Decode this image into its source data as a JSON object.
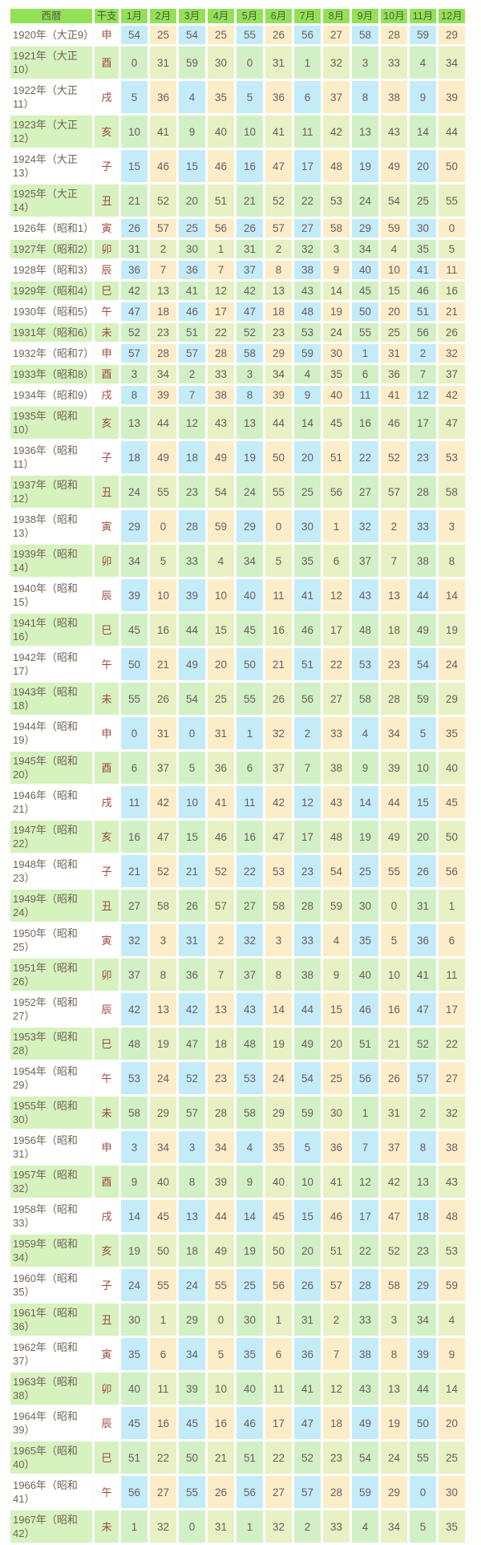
{
  "colors": {
    "header_bg": "#93e156",
    "header_text": "#4e5d42",
    "green_row_bg": "#d6f2bf",
    "white_row_bg": "#ffffff",
    "blue_cell": "#c4ecf8",
    "cream_cell": "#fcedc9",
    "green_cell_cool": "#d2f0c5",
    "green_cell_warm": "#e7f1c3",
    "year_text": "#6e6356",
    "eto_text": "#9e463c",
    "number_text": "#6a5c5e"
  },
  "chart_data": {
    "type": "table",
    "columns": [
      "西暦",
      "干支",
      "1月",
      "2月",
      "3月",
      "4月",
      "5月",
      "6月",
      "7月",
      "8月",
      "9月",
      "10月",
      "11月",
      "12月"
    ],
    "rows": [
      {
        "year": "1920年（大正9）",
        "eto": "申",
        "values": [
          54,
          25,
          54,
          25,
          55,
          26,
          56,
          27,
          58,
          28,
          59,
          29
        ]
      },
      {
        "year": "1921年（大正10）",
        "eto": "酉",
        "values": [
          0,
          31,
          59,
          30,
          0,
          31,
          1,
          32,
          3,
          33,
          4,
          34
        ]
      },
      {
        "year": "1922年（大正11）",
        "eto": "戌",
        "values": [
          5,
          36,
          4,
          35,
          5,
          36,
          6,
          37,
          8,
          38,
          9,
          39
        ]
      },
      {
        "year": "1923年（大正12）",
        "eto": "亥",
        "values": [
          10,
          41,
          9,
          40,
          10,
          41,
          11,
          42,
          13,
          43,
          14,
          44
        ]
      },
      {
        "year": "1924年（大正13）",
        "eto": "子",
        "values": [
          15,
          46,
          15,
          46,
          16,
          47,
          17,
          48,
          19,
          49,
          20,
          50
        ]
      },
      {
        "year": "1925年（大正14）",
        "eto": "丑",
        "values": [
          21,
          52,
          20,
          51,
          21,
          52,
          22,
          53,
          24,
          54,
          25,
          55
        ]
      },
      {
        "year": "1926年（昭和1）",
        "eto": "寅",
        "values": [
          26,
          57,
          25,
          56,
          26,
          57,
          27,
          58,
          29,
          59,
          30,
          0
        ]
      },
      {
        "year": "1927年（昭和2）",
        "eto": "卯",
        "values": [
          31,
          2,
          30,
          1,
          31,
          2,
          32,
          3,
          34,
          4,
          35,
          5
        ]
      },
      {
        "year": "1928年（昭和3）",
        "eto": "辰",
        "values": [
          36,
          7,
          36,
          7,
          37,
          8,
          38,
          9,
          40,
          10,
          41,
          11
        ]
      },
      {
        "year": "1929年（昭和4）",
        "eto": "巳",
        "values": [
          42,
          13,
          41,
          12,
          42,
          13,
          43,
          14,
          45,
          15,
          46,
          16
        ]
      },
      {
        "year": "1930年（昭和5）",
        "eto": "午",
        "values": [
          47,
          18,
          46,
          17,
          47,
          18,
          48,
          19,
          50,
          20,
          51,
          21
        ]
      },
      {
        "year": "1931年（昭和6）",
        "eto": "未",
        "values": [
          52,
          23,
          51,
          22,
          52,
          23,
          53,
          24,
          55,
          25,
          56,
          26
        ]
      },
      {
        "year": "1932年（昭和7）",
        "eto": "申",
        "values": [
          57,
          28,
          57,
          28,
          58,
          29,
          59,
          30,
          1,
          31,
          2,
          32
        ]
      },
      {
        "year": "1933年（昭和8）",
        "eto": "酉",
        "values": [
          3,
          34,
          2,
          33,
          3,
          34,
          4,
          35,
          6,
          36,
          7,
          37
        ]
      },
      {
        "year": "1934年（昭和9）",
        "eto": "戌",
        "values": [
          8,
          39,
          7,
          38,
          8,
          39,
          9,
          40,
          11,
          41,
          12,
          42
        ]
      },
      {
        "year": "1935年（昭和10）",
        "eto": "亥",
        "values": [
          13,
          44,
          12,
          43,
          13,
          44,
          14,
          45,
          16,
          46,
          17,
          47
        ]
      },
      {
        "year": "1936年（昭和11）",
        "eto": "子",
        "values": [
          18,
          49,
          18,
          49,
          19,
          50,
          20,
          51,
          22,
          52,
          23,
          53
        ]
      },
      {
        "year": "1937年（昭和12）",
        "eto": "丑",
        "values": [
          24,
          55,
          23,
          54,
          24,
          55,
          25,
          56,
          27,
          57,
          28,
          58
        ]
      },
      {
        "year": "1938年（昭和13）",
        "eto": "寅",
        "values": [
          29,
          0,
          28,
          59,
          29,
          0,
          30,
          1,
          32,
          2,
          33,
          3
        ]
      },
      {
        "year": "1939年（昭和14）",
        "eto": "卯",
        "values": [
          34,
          5,
          33,
          4,
          34,
          5,
          35,
          6,
          37,
          7,
          38,
          8
        ]
      },
      {
        "year": "1940年（昭和15）",
        "eto": "辰",
        "values": [
          39,
          10,
          39,
          10,
          40,
          11,
          41,
          12,
          43,
          13,
          44,
          14
        ]
      },
      {
        "year": "1941年（昭和16）",
        "eto": "巳",
        "values": [
          45,
          16,
          44,
          15,
          45,
          16,
          46,
          17,
          48,
          18,
          49,
          19
        ]
      },
      {
        "year": "1942年（昭和17）",
        "eto": "午",
        "values": [
          50,
          21,
          49,
          20,
          50,
          21,
          51,
          22,
          53,
          23,
          54,
          24
        ]
      },
      {
        "year": "1943年（昭和18）",
        "eto": "未",
        "values": [
          55,
          26,
          54,
          25,
          55,
          26,
          56,
          27,
          58,
          28,
          59,
          29
        ]
      },
      {
        "year": "1944年（昭和19）",
        "eto": "申",
        "values": [
          0,
          31,
          0,
          31,
          1,
          32,
          2,
          33,
          4,
          34,
          5,
          35
        ]
      },
      {
        "year": "1945年（昭和20）",
        "eto": "酉",
        "values": [
          6,
          37,
          5,
          36,
          6,
          37,
          7,
          38,
          9,
          39,
          10,
          40
        ]
      },
      {
        "year": "1946年（昭和21）",
        "eto": "戌",
        "values": [
          11,
          42,
          10,
          41,
          11,
          42,
          12,
          43,
          14,
          44,
          15,
          45
        ]
      },
      {
        "year": "1947年（昭和22）",
        "eto": "亥",
        "values": [
          16,
          47,
          15,
          46,
          16,
          47,
          17,
          48,
          19,
          49,
          20,
          50
        ]
      },
      {
        "year": "1948年（昭和23）",
        "eto": "子",
        "values": [
          21,
          52,
          21,
          52,
          22,
          53,
          23,
          54,
          25,
          55,
          26,
          56
        ]
      },
      {
        "year": "1949年（昭和24）",
        "eto": "丑",
        "values": [
          27,
          58,
          26,
          57,
          27,
          58,
          28,
          59,
          30,
          0,
          31,
          1
        ]
      },
      {
        "year": "1950年（昭和25）",
        "eto": "寅",
        "values": [
          32,
          3,
          31,
          2,
          32,
          3,
          33,
          4,
          35,
          5,
          36,
          6
        ]
      },
      {
        "year": "1951年（昭和26）",
        "eto": "卯",
        "values": [
          37,
          8,
          36,
          7,
          37,
          8,
          38,
          9,
          40,
          10,
          41,
          11
        ]
      },
      {
        "year": "1952年（昭和27）",
        "eto": "辰",
        "values": [
          42,
          13,
          42,
          13,
          43,
          14,
          44,
          15,
          46,
          16,
          47,
          17
        ]
      },
      {
        "year": "1953年（昭和28）",
        "eto": "巳",
        "values": [
          48,
          19,
          47,
          18,
          48,
          19,
          49,
          20,
          51,
          21,
          52,
          22
        ]
      },
      {
        "year": "1954年（昭和29）",
        "eto": "午",
        "values": [
          53,
          24,
          52,
          23,
          53,
          24,
          54,
          25,
          56,
          26,
          57,
          27
        ]
      },
      {
        "year": "1955年（昭和30）",
        "eto": "未",
        "values": [
          58,
          29,
          57,
          28,
          58,
          29,
          59,
          30,
          1,
          31,
          2,
          32
        ]
      },
      {
        "year": "1956年（昭和31）",
        "eto": "申",
        "values": [
          3,
          34,
          3,
          34,
          4,
          35,
          5,
          36,
          7,
          37,
          8,
          38
        ]
      },
      {
        "year": "1957年（昭和32）",
        "eto": "酉",
        "values": [
          9,
          40,
          8,
          39,
          9,
          40,
          10,
          41,
          12,
          42,
          13,
          43
        ]
      },
      {
        "year": "1958年（昭和33）",
        "eto": "戌",
        "values": [
          14,
          45,
          13,
          44,
          14,
          45,
          15,
          46,
          17,
          47,
          18,
          48
        ]
      },
      {
        "year": "1959年（昭和34）",
        "eto": "亥",
        "values": [
          19,
          50,
          18,
          49,
          19,
          50,
          20,
          51,
          22,
          52,
          23,
          53
        ]
      },
      {
        "year": "1960年（昭和35）",
        "eto": "子",
        "values": [
          24,
          55,
          24,
          55,
          25,
          56,
          26,
          57,
          28,
          58,
          29,
          59
        ]
      },
      {
        "year": "1961年（昭和36）",
        "eto": "丑",
        "values": [
          30,
          1,
          29,
          0,
          30,
          1,
          31,
          2,
          33,
          3,
          34,
          4
        ]
      },
      {
        "year": "1962年（昭和37）",
        "eto": "寅",
        "values": [
          35,
          6,
          34,
          5,
          35,
          6,
          36,
          7,
          38,
          8,
          39,
          9
        ]
      },
      {
        "year": "1963年（昭和38）",
        "eto": "卯",
        "values": [
          40,
          11,
          39,
          10,
          40,
          11,
          41,
          12,
          43,
          13,
          44,
          14
        ]
      },
      {
        "year": "1964年（昭和39）",
        "eto": "辰",
        "values": [
          45,
          16,
          45,
          16,
          46,
          17,
          47,
          18,
          49,
          19,
          50,
          20
        ]
      },
      {
        "year": "1965年（昭和40）",
        "eto": "巳",
        "values": [
          51,
          22,
          50,
          21,
          51,
          22,
          52,
          23,
          54,
          24,
          55,
          25
        ]
      },
      {
        "year": "1966年（昭和41）",
        "eto": "午",
        "values": [
          56,
          27,
          55,
          26,
          56,
          27,
          57,
          28,
          59,
          29,
          0,
          30
        ]
      },
      {
        "year": "1967年（昭和42）",
        "eto": "未",
        "values": [
          1,
          32,
          0,
          31,
          1,
          32,
          2,
          33,
          4,
          34,
          5,
          35
        ]
      }
    ]
  }
}
